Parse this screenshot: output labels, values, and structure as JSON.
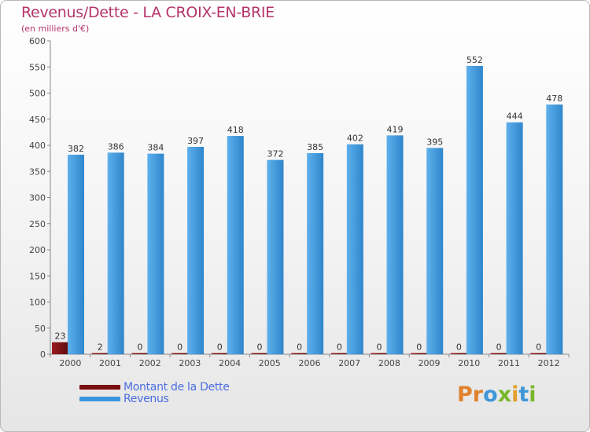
{
  "header": {
    "title": "Revenus/Dette - LA CROIX-EN-BRIE",
    "subtitle": "(en milliers d'€)"
  },
  "colors": {
    "title": "#b5346a",
    "dette": "#7a0f12",
    "revenus": "#3a96dc",
    "legend_text": "#4a6ee0",
    "axis_text": "#444444",
    "value_text": "#333333"
  },
  "chart_data": {
    "type": "bar",
    "title": "Revenus/Dette - LA CROIX-EN-BRIE",
    "ylabel": "(en milliers d'€)",
    "xlabel": "",
    "categories": [
      "2000",
      "2001",
      "2002",
      "2003",
      "2004",
      "2005",
      "2006",
      "2007",
      "2008",
      "2009",
      "2010",
      "2011",
      "2012"
    ],
    "series": [
      {
        "name": "Montant de la Dette",
        "color": "#7a0f12",
        "values": [
          23,
          2,
          0,
          0,
          0,
          0,
          0,
          0,
          0,
          0,
          0,
          0,
          0
        ]
      },
      {
        "name": "Revenus",
        "color": "#3a96dc",
        "values": [
          382,
          386,
          384,
          397,
          418,
          372,
          385,
          402,
          419,
          395,
          552,
          444,
          478
        ]
      }
    ],
    "ylim": [
      0,
      600
    ],
    "yticks": [
      0,
      50,
      100,
      150,
      200,
      250,
      300,
      350,
      400,
      450,
      500,
      550,
      600
    ],
    "grid": false,
    "legend_position": "bottom-left"
  },
  "legend": {
    "items": [
      {
        "label": "Montant de la Dette",
        "color": "#7a0f12"
      },
      {
        "label": "Revenus",
        "color": "#3a96dc"
      }
    ]
  },
  "brand": {
    "letters": [
      {
        "char": "P",
        "color": "#e0812c"
      },
      {
        "char": "r",
        "color": "#e0812c"
      },
      {
        "char": "o",
        "color": "#3f97d8"
      },
      {
        "char": "x",
        "color": "#78b82a"
      },
      {
        "char": "i",
        "color": "#e0a02c"
      },
      {
        "char": "t",
        "color": "#3f97d8"
      },
      {
        "char": "i",
        "color": "#78b82a"
      }
    ]
  }
}
